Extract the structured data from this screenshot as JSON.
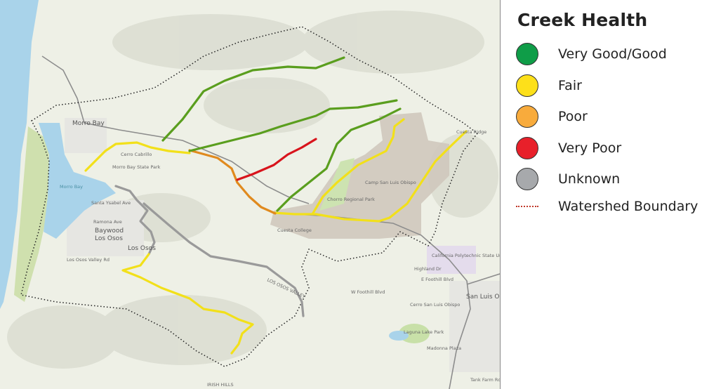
{
  "legend": {
    "title": "Creek Health",
    "items": [
      {
        "label": "Very Good/Good",
        "color": "#0f9d48",
        "type": "circle"
      },
      {
        "label": "Fair",
        "color": "#fde01a",
        "type": "circle"
      },
      {
        "label": "Poor",
        "color": "#f8ab3c",
        "type": "circle"
      },
      {
        "label": "Very Poor",
        "color": "#e8202a",
        "type": "circle"
      },
      {
        "label": "Unknown",
        "color": "#a7a9ac",
        "type": "circle"
      },
      {
        "label": "Watershed Boundary",
        "color": "#c0392b",
        "type": "dotted-line"
      }
    ]
  },
  "map": {
    "creek_colors": {
      "good": "#5a9e1e",
      "fair": "#f2e01a",
      "poor": "#e08a1e",
      "very_poor": "#d8141c",
      "unknown": "#9a9a9a"
    },
    "labels": {
      "morro_bay_city": "Morro Bay",
      "morro_bay_water": "Morro Bay",
      "baywood": "Baywood",
      "los_osos_1": "Los Osos",
      "los_osos_2": "Los Osos",
      "santa_ysabel": "Santa Ysabel Ave",
      "ramona": "Ramona Ave",
      "losos_valley_rd": "Los Osos Valley Rd",
      "state_park": "Morro Bay State Park",
      "cerro_cabrillo": "Cerro Cabrillo",
      "camp_slo": "Camp San Luis Obispo",
      "cuesta": "Cuesta College",
      "chorro": "Chorro Regional Park",
      "calpoly": "California Polytechnic State Univ",
      "highland": "Highland Dr",
      "foothill": "E Foothill Blvd",
      "w_foothill": "W Foothill Blvd",
      "slo": "San Luis Obispo",
      "cerro_slo": "Cerro San Luis Obispo",
      "laguna": "Laguna Lake Park",
      "madonna": "Madonna Plaza",
      "tank_farm": "Tank Farm Rd",
      "irish_hills": "IRISH HILLS",
      "los_osos_valley": "LOS OSOS VALLEY",
      "cuesta_ridge": "Cuesta Ridge"
    }
  }
}
